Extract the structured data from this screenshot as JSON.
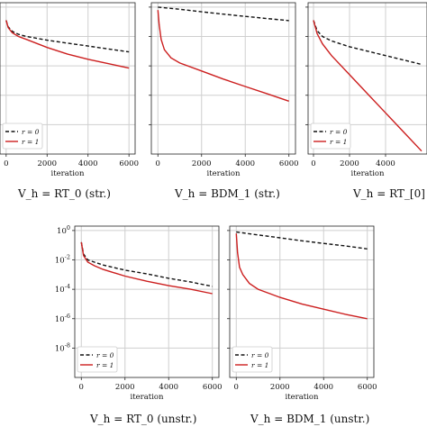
{
  "figure": {
    "captions": [
      "V_h = RT_0 (str.)",
      "V_h = BDM_1 (str.)",
      "V_h = RT_[0]",
      "V_h = RT_0 (unstr.)",
      "V_h = BDM_1 (unstr.)"
    ]
  },
  "colors": {
    "r0": "#111111",
    "r1": "#cc1f1f",
    "grid": "#cfcfcf",
    "axis": "#222222"
  },
  "chart_data": [
    {
      "type": "line",
      "caption": "V_h = RT_0 (str.)",
      "xlabel": "iteration",
      "x_ticks": [
        0,
        2000,
        4000,
        6000
      ],
      "y_ticks": [],
      "xlim": [
        -300,
        6300
      ],
      "ylim": [
        -10,
        0.3
      ],
      "ylog": true,
      "legend": "lower-left",
      "series": [
        {
          "name": "r = 0",
          "style": "dashed",
          "x": [
            0,
            100,
            300,
            600,
            1000,
            2000,
            3000,
            4000,
            5000,
            6000
          ],
          "y": [
            -0.9,
            -1.35,
            -1.65,
            -1.85,
            -2.0,
            -2.25,
            -2.45,
            -2.65,
            -2.85,
            -3.05
          ]
        },
        {
          "name": "r = 1",
          "style": "solid",
          "x": [
            0,
            100,
            300,
            600,
            1000,
            2000,
            3000,
            4000,
            5000,
            6000
          ],
          "y": [
            -0.9,
            -1.4,
            -1.75,
            -2.0,
            -2.2,
            -2.75,
            -3.2,
            -3.55,
            -3.85,
            -4.15
          ]
        }
      ]
    },
    {
      "type": "line",
      "caption": "V_h = BDM_1 (str.)",
      "xlabel": "iteration",
      "x_ticks": [
        0,
        2000,
        4000,
        6000
      ],
      "y_ticks": [],
      "xlim": [
        -300,
        6300
      ],
      "ylim": [
        -10,
        0.3
      ],
      "ylog": true,
      "legend": "none",
      "series": [
        {
          "name": "r = 0",
          "style": "dashed",
          "x": [
            0,
            1000,
            2000,
            3000,
            4000,
            5000,
            6000
          ],
          "y": [
            0,
            -0.15,
            -0.32,
            -0.48,
            -0.63,
            -0.78,
            -0.92
          ]
        },
        {
          "name": "r = 1",
          "style": "solid",
          "x": [
            0,
            60,
            150,
            300,
            600,
            1000,
            2000,
            3000,
            4000,
            5000,
            6000
          ],
          "y": [
            -0.2,
            -1.2,
            -2.2,
            -2.9,
            -3.45,
            -3.8,
            -4.35,
            -4.9,
            -5.4,
            -5.9,
            -6.4
          ]
        }
      ]
    },
    {
      "type": "line",
      "caption": "V_h = RT_[0]",
      "xlabel": "iteration",
      "x_ticks": [
        0,
        2000,
        4000
      ],
      "y_ticks": [],
      "xlim": [
        -300,
        6300
      ],
      "ylim": [
        -10,
        0.3
      ],
      "ylog": true,
      "legend": "lower-left",
      "series": [
        {
          "name": "r = 0",
          "style": "dashed",
          "x": [
            0,
            200,
            500,
            1000,
            2000,
            3000,
            4000,
            5000,
            6000
          ],
          "y": [
            -0.9,
            -1.6,
            -2.0,
            -2.3,
            -2.7,
            -3.0,
            -3.3,
            -3.6,
            -3.9
          ]
        },
        {
          "name": "r = 1",
          "style": "solid",
          "x": [
            0,
            200,
            500,
            1000,
            2000,
            3000,
            4000,
            5000,
            6000
          ],
          "y": [
            -0.9,
            -1.8,
            -2.5,
            -3.3,
            -4.6,
            -5.9,
            -7.2,
            -8.5,
            -9.8
          ]
        }
      ]
    },
    {
      "type": "line",
      "caption": "V_h = RT_0 (unstr.)",
      "xlabel": "iteration",
      "x_ticks": [
        0,
        2000,
        4000,
        6000
      ],
      "y_ticks": [
        "10^0",
        "10^-2",
        "10^-4",
        "10^-6",
        "10^-8"
      ],
      "xlim": [
        -300,
        6300
      ],
      "ylim": [
        -10,
        0.3
      ],
      "ylog": true,
      "legend": "lower-left",
      "series": [
        {
          "name": "r = 0",
          "style": "dashed",
          "x": [
            0,
            100,
            300,
            600,
            1000,
            2000,
            3000,
            4000,
            5000,
            6000
          ],
          "y": [
            -0.8,
            -1.6,
            -2.0,
            -2.15,
            -2.35,
            -2.7,
            -2.95,
            -3.25,
            -3.5,
            -3.8
          ]
        },
        {
          "name": "r = 1",
          "style": "solid",
          "x": [
            0,
            100,
            300,
            600,
            1000,
            2000,
            3000,
            4000,
            5000,
            6000
          ],
          "y": [
            -0.8,
            -1.7,
            -2.15,
            -2.4,
            -2.65,
            -3.1,
            -3.45,
            -3.75,
            -4.0,
            -4.3
          ]
        }
      ]
    },
    {
      "type": "line",
      "caption": "V_h = BDM_1 (unstr.)",
      "xlabel": "iteration",
      "x_ticks": [
        0,
        2000,
        4000,
        6000
      ],
      "y_ticks": [],
      "xlim": [
        -300,
        6300
      ],
      "ylim": [
        -10,
        0.3
      ],
      "ylog": true,
      "legend": "lower-left",
      "series": [
        {
          "name": "r = 0",
          "style": "dashed",
          "x": [
            0,
            1000,
            2000,
            3000,
            4000,
            5000,
            6000
          ],
          "y": [
            -0.1,
            -0.3,
            -0.5,
            -0.7,
            -0.88,
            -1.05,
            -1.25
          ]
        },
        {
          "name": "r = 1",
          "style": "solid",
          "x": [
            0,
            60,
            150,
            300,
            600,
            1000,
            2000,
            3000,
            4000,
            5000,
            6000
          ],
          "y": [
            -0.2,
            -1.5,
            -2.5,
            -3.0,
            -3.6,
            -4.0,
            -4.55,
            -5.0,
            -5.35,
            -5.7,
            -6.0
          ]
        }
      ]
    }
  ]
}
